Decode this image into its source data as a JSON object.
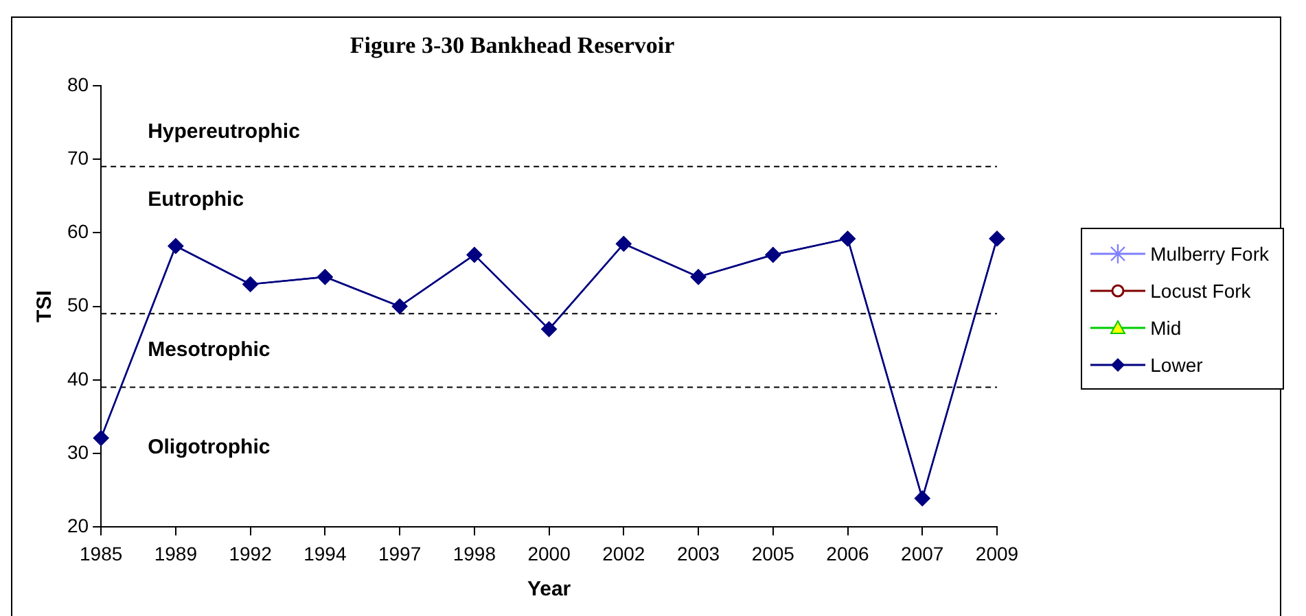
{
  "chart_data": {
    "type": "line",
    "title": "Figure 3-30 Bankhead Reservoir",
    "xlabel": "Year",
    "ylabel": "TSI",
    "categories": [
      "1985",
      "1989",
      "1992",
      "1994",
      "1997",
      "1998",
      "2000",
      "2002",
      "2003",
      "2005",
      "2006",
      "2007",
      "2009"
    ],
    "series": [
      {
        "name": "Mulberry Fork",
        "color": "#8080ff",
        "marker": "cross",
        "values": [
          null,
          null,
          null,
          null,
          null,
          null,
          null,
          null,
          null,
          null,
          null,
          null,
          null
        ]
      },
      {
        "name": "Locust Fork",
        "color": "#800000",
        "marker": "circle",
        "values": [
          null,
          null,
          null,
          null,
          null,
          null,
          null,
          null,
          null,
          null,
          null,
          null,
          null
        ]
      },
      {
        "name": "Mid",
        "color": "#00cc00",
        "marker": "triangle",
        "values": [
          null,
          null,
          null,
          null,
          null,
          null,
          null,
          null,
          null,
          null,
          null,
          null,
          null
        ]
      },
      {
        "name": "Lower",
        "color": "#000080",
        "marker": "diamond",
        "values": [
          32.1,
          58.2,
          53,
          54,
          50,
          57,
          46.9,
          58.5,
          54,
          57,
          59.2,
          23.9,
          59.2
        ]
      }
    ],
    "ylim": [
      20,
      80
    ],
    "yticks": [
      20,
      30,
      40,
      50,
      60,
      70,
      80
    ],
    "ref_lines": [
      {
        "axis": "y",
        "value": 69,
        "color": "#000000",
        "line_style": "dashed"
      },
      {
        "axis": "y",
        "value": 49,
        "color": "#000000",
        "line_style": "dashed"
      },
      {
        "axis": "y",
        "value": 39,
        "color": "#000000",
        "line_style": "dashed"
      }
    ],
    "annotations": [
      "Hypereutrophic",
      "Eutrophic",
      "Mesotrophic",
      "Oligotrophic"
    ],
    "grid": false,
    "legend": "right",
    "line_style": "solid"
  }
}
